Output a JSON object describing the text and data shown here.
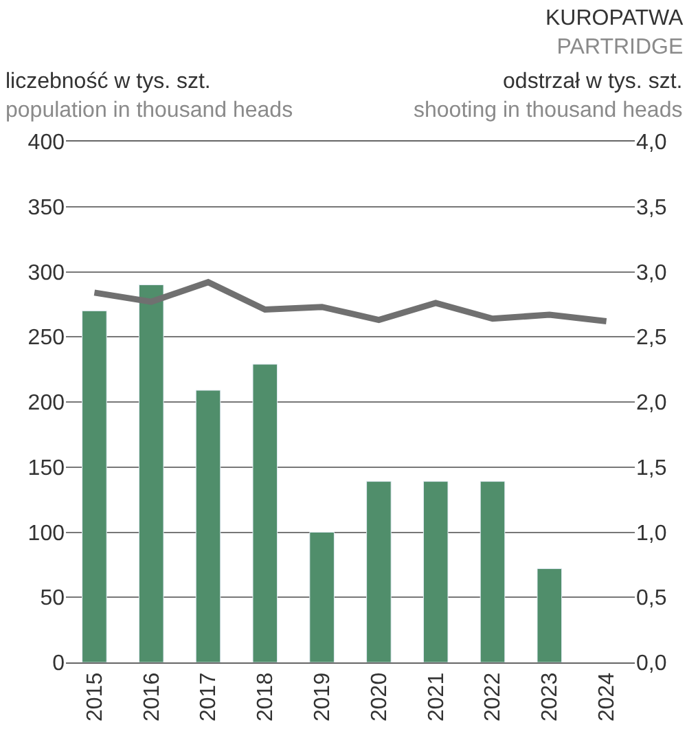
{
  "chart_data": {
    "type": "bar",
    "title": "KUROPATWA",
    "subtitle": "PARTRIDGE",
    "ylabel": "liczebność w tys. szt.\npopulation in thousand heads",
    "y2label": "odstrzał w tys. szt.\nshooting in thousand heads",
    "categories": [
      "2015",
      "2016",
      "2017",
      "2018",
      "2019",
      "2020",
      "2021",
      "2022",
      "2023",
      "2024"
    ],
    "series": [
      {
        "color": "#508e6b",
        "values": [
          270,
          290,
          209,
          229,
          100,
          139,
          139,
          139,
          72,
          null
        ]
      },
      {
        "type": "line",
        "axis": "y2",
        "color": "#707070",
        "values": [
          2.84,
          2.77,
          2.92,
          2.71,
          2.73,
          2.63,
          2.76,
          2.64,
          2.67,
          2.62
        ]
      }
    ],
    "ylim": [
      0,
      400
    ],
    "yticks": [
      0,
      50,
      100,
      150,
      200,
      250,
      300,
      350,
      400
    ],
    "y2lim": [
      0,
      4
    ],
    "y2ticks": [
      {
        "value": 0,
        "label": "0,0"
      },
      {
        "value": 0.5,
        "label": "0,5"
      },
      {
        "value": 1,
        "label": "1,0"
      },
      {
        "value": 1.5,
        "label": "1,5"
      },
      {
        "value": 2,
        "label": "2,0"
      },
      {
        "value": 2.5,
        "label": "2,5"
      },
      {
        "value": 3,
        "label": "3,0"
      },
      {
        "value": 3.5,
        "label": "3,5"
      },
      {
        "value": 4,
        "label": "4,0"
      }
    ],
    "grid": "y",
    "marker": "none",
    "line_style": "solid"
  }
}
